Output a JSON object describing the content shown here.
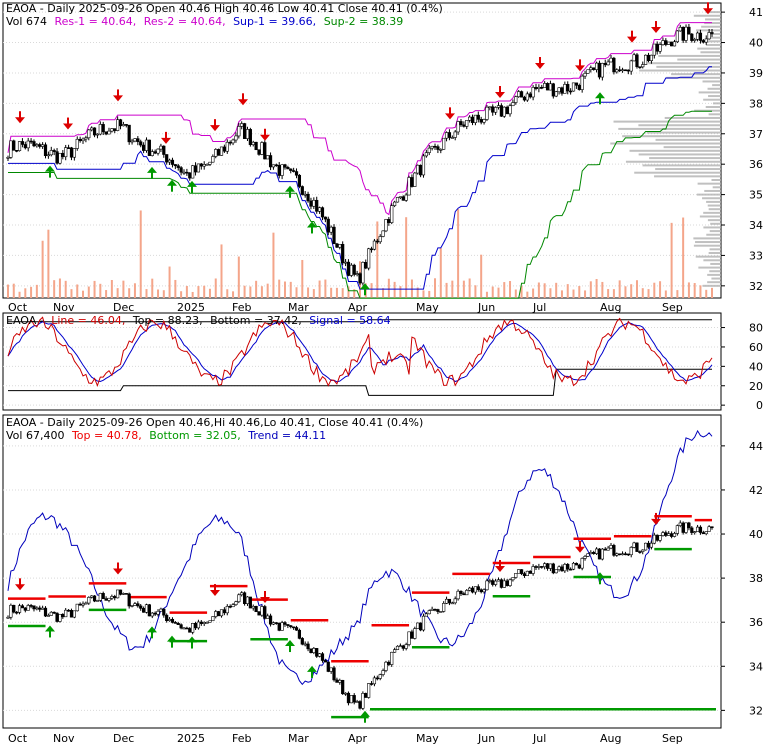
{
  "colors": {
    "frame": "#000000",
    "grid": "#d9d9d9",
    "price": "#000000",
    "volume": "#f4a58a",
    "res": "#cc00cc",
    "res_line": "#cc0000",
    "sup1": "#0000cc",
    "sup2": "#008800",
    "down_arrow": "#dd0000",
    "up_arrow": "#009900",
    "osc_line": "#cc0000",
    "osc_signal": "#0000cc",
    "osc_band": "#000000",
    "trend": "#0000bb",
    "top_line": "#ee0000",
    "bottom_line": "#009900",
    "profile": "#b0b0b0"
  },
  "panel1": {
    "header1_pre": "EAOA - Daily 2025-09-26 Open 40.46   High 40.46   Low 40.41   Close 40.41 (0.4%)",
    "header2": {
      "vol": "Vol 674",
      "res1": "Res-1 = 40.64,",
      "res2": "Res-2 = 40.64,",
      "sup1": "Sup-1 = 39.66,",
      "sup2": "Sup-2 = 38.39"
    },
    "y_ticks": [
      "41",
      "40",
      "39",
      "38",
      "37",
      "36",
      "35",
      "34",
      "33",
      "32"
    ]
  },
  "panel2": {
    "header": {
      "title": "EAOA -",
      "line": "Line = 46.04,",
      "top": "Top = 88.23,",
      "bottom": "Bottom = 37.42,",
      "signal": "Signal = 58.64"
    },
    "y_ticks": [
      "80",
      "60",
      "40",
      "20",
      "0"
    ]
  },
  "panel3": {
    "header1": "EAOA - Daily 2025-09-26 Open 40.46,Hi 40.46,Lo 40.41, Close 40.41 (0.4%)",
    "header2": {
      "vol": "Vol 67,400",
      "top": "Top = 40.78,",
      "bottom": "Bottom = 32.05,",
      "trend": "Trend = 44.11"
    },
    "y_ticks": [
      "44",
      "42",
      "40",
      "38",
      "36",
      "34",
      "32"
    ]
  },
  "x_labels": [
    "Oct",
    "Nov",
    "Dec",
    "2025",
    "Feb",
    "Mar",
    "Apr",
    "May",
    "Jun",
    "Jul",
    "Aug",
    "Sep"
  ],
  "chart_data": [
    {
      "type": "candlestick",
      "title": "EAOA - Daily 2025-09-26",
      "ylim": [
        31.6,
        41.3
      ],
      "x_tick_labels": [
        "Oct",
        "Nov",
        "Dec",
        "2025",
        "Feb",
        "Mar",
        "Apr",
        "May",
        "Jun",
        "Jul",
        "Aug",
        "Sep"
      ],
      "close_path": [
        {
          "x": "Oct",
          "y": 36.5
        },
        {
          "x": "Nov",
          "y": 36.4
        },
        {
          "x": "Dec",
          "y": 37.3
        },
        {
          "x": "2025",
          "y": 35.6
        },
        {
          "x": "Feb",
          "y": 37.0
        },
        {
          "x": "Mar",
          "y": 35.5
        },
        {
          "x": "Apr",
          "y": 32.3
        },
        {
          "x": "May",
          "y": 36.3
        },
        {
          "x": "Jun",
          "y": 37.7
        },
        {
          "x": "Jul",
          "y": 38.4
        },
        {
          "x": "Aug",
          "y": 39.1
        },
        {
          "x": "Sep",
          "y": 40.0
        }
      ],
      "last_close": 40.41,
      "resistance_1": 40.64,
      "resistance_2": 40.64,
      "support_1": 39.66,
      "support_2": 38.39,
      "volume_last": 674
    },
    {
      "type": "line",
      "title": "EAOA - Line / Signal",
      "ylim": [
        0,
        95
      ],
      "series": [
        {
          "name": "Line",
          "last": 46.04
        },
        {
          "name": "Signal",
          "last": 58.64
        }
      ],
      "top": 88.23,
      "bottom": 37.42
    },
    {
      "type": "candlestick",
      "title": "EAOA - Daily 2025-09-26",
      "ylim": [
        31.2,
        45.4
      ],
      "top": 40.78,
      "bottom": 32.05,
      "trend_last": 44.11,
      "volume_last": 67400
    }
  ]
}
